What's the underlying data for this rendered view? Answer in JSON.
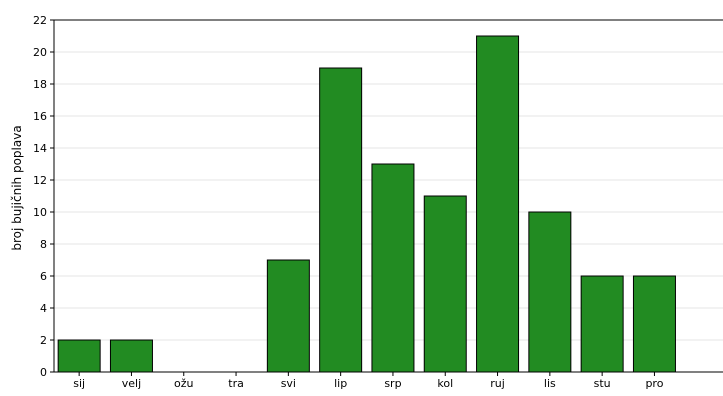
{
  "chart_data": {
    "type": "bar",
    "categories": [
      "sij",
      "velj",
      "ožu",
      "tra",
      "svi",
      "lip",
      "srp",
      "kol",
      "ruj",
      "lis",
      "stu",
      "pro"
    ],
    "values": [
      2,
      2,
      0,
      0,
      7,
      19,
      13,
      11,
      21,
      10,
      6,
      6
    ],
    "title": "",
    "xlabel": "",
    "ylabel": "broj bujičnih poplava",
    "ylim": [
      0,
      22
    ],
    "yticks": [
      0,
      2,
      4,
      6,
      8,
      10,
      12,
      14,
      16,
      18,
      20,
      22
    ],
    "grid": "horizontal",
    "legend": "none",
    "bar_color": "#228b22",
    "bar_edge_color": "#000000",
    "grid_color": "#e6e6e6"
  }
}
